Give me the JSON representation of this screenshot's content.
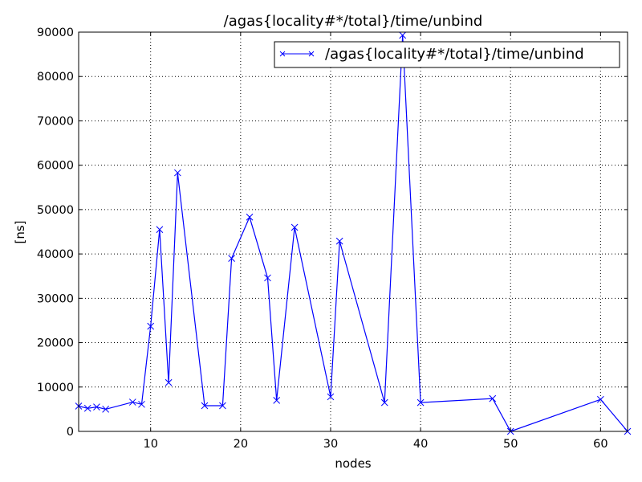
{
  "chart_data": {
    "type": "line",
    "title": "/agas{locality#*/total}/time/unbind",
    "xlabel": "nodes",
    "ylabel": "[ns]",
    "xlim": [
      2,
      63
    ],
    "ylim": [
      0,
      90000
    ],
    "grid": true,
    "legend_position": "upper right",
    "x_ticks": [
      10,
      20,
      30,
      40,
      50,
      60
    ],
    "y_ticks": [
      0,
      10000,
      20000,
      30000,
      40000,
      50000,
      60000,
      70000,
      80000,
      90000
    ],
    "series": [
      {
        "name": "/agas{locality#*/total}/time/unbind",
        "color": "#0000ff",
        "marker": "x",
        "x": [
          2,
          3,
          4,
          5,
          8,
          9,
          10,
          11,
          12,
          13,
          16,
          18,
          19,
          21,
          23,
          24,
          26,
          30,
          31,
          36,
          38,
          40,
          48,
          50,
          60,
          63
        ],
        "values": [
          5700,
          5200,
          5500,
          5000,
          6600,
          6100,
          23700,
          45500,
          11000,
          58300,
          5800,
          5800,
          39000,
          48300,
          34600,
          7000,
          46000,
          7800,
          42900,
          6500,
          89300,
          6500,
          7400,
          0,
          7200,
          0
        ]
      }
    ]
  }
}
